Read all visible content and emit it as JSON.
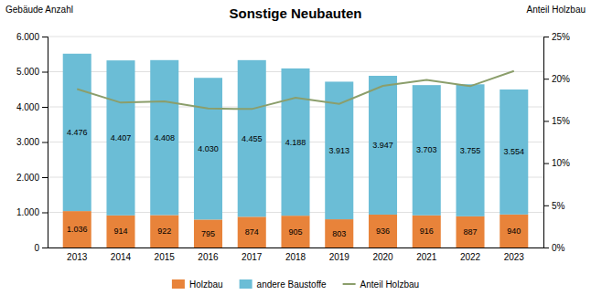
{
  "chart_data": {
    "type": "bar",
    "title": "Sonstige Neubauten",
    "y_label": "Gebäude Anzahl",
    "y2_label": "Anteil Holzbau",
    "stacked": true,
    "data_labels": true,
    "grid": true,
    "legend": "bottom",
    "categories": [
      "2013",
      "2014",
      "2015",
      "2016",
      "2017",
      "2018",
      "2019",
      "2020",
      "2021",
      "2022",
      "2023"
    ],
    "series": [
      {
        "name": "Holzbau",
        "type": "bar",
        "color": "#E8833A",
        "values": [
          1036,
          914,
          922,
          795,
          874,
          905,
          803,
          936,
          916,
          887,
          940
        ],
        "value_labels": [
          "1.036",
          "914",
          "922",
          "795",
          "874",
          "905",
          "803",
          "936",
          "916",
          "887",
          "940"
        ]
      },
      {
        "name": "andere Baustoffe",
        "type": "bar",
        "color": "#6BBDD6",
        "values": [
          4476,
          4407,
          4408,
          4030,
          4455,
          4188,
          3913,
          3947,
          3703,
          3755,
          3554
        ],
        "value_labels": [
          "4.476",
          "4.407",
          "4.408",
          "4.030",
          "4.455",
          "4.188",
          "3.913",
          "3.947",
          "3.703",
          "3.755",
          "3.554"
        ]
      },
      {
        "name": "Anteil Holzbau",
        "type": "line",
        "axis": "y2",
        "color": "#8B9E6B",
        "values": [
          0.1878,
          0.1717,
          0.1731,
          0.1647,
          0.1641,
          0.1774,
          0.1703,
          0.1916,
          0.1985,
          0.1912,
          0.2092
        ]
      }
    ],
    "ylim": [
      0,
      6000
    ],
    "yticks": [
      0,
      {
        "value": 1000,
        "label": "1.000"
      },
      {
        "value": 2000,
        "label": "2.000"
      },
      {
        "value": 3000,
        "label": "3.000"
      },
      {
        "value": 4000,
        "label": "4.000"
      },
      {
        "value": 5000,
        "label": "5.000"
      },
      {
        "value": 6000,
        "label": "6.000"
      }
    ],
    "y2lim": [
      0,
      0.25
    ],
    "y2ticks": [
      {
        "value": 0,
        "label": "0%"
      },
      {
        "value": 0.05,
        "label": "5%"
      },
      {
        "value": 0.1,
        "label": "10%"
      },
      {
        "value": 0.15,
        "label": "15%"
      },
      {
        "value": 0.2,
        "label": "20%"
      },
      {
        "value": 0.25,
        "label": "25%"
      }
    ]
  }
}
